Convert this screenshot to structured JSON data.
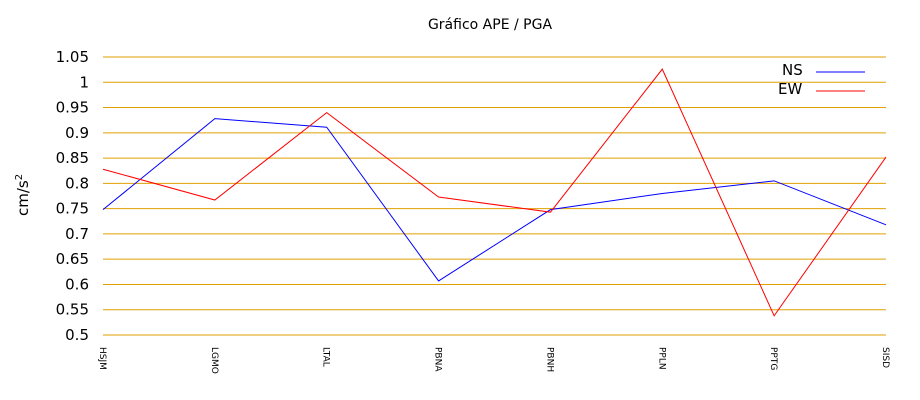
{
  "chart_data": {
    "type": "line",
    "title": "Gráfico  APE / PGA",
    "xlabel": "",
    "ylabel": "cm/s",
    "ylabel_exponent": "2",
    "categories": [
      "HSJM",
      "LGMO",
      "LTAL",
      "PBNA",
      "PBNH",
      "PPLN",
      "PPTG",
      "SISD"
    ],
    "ylim": [
      0.5,
      1.05
    ],
    "yticks": [
      "0.5",
      "0.55",
      "0.6",
      "0.65",
      "0.7",
      "0.75",
      "0.8",
      "0.85",
      "0.9",
      "0.95",
      "1",
      "1.05"
    ],
    "grid": true,
    "legend_position": "top-right",
    "series": [
      {
        "name": "NS",
        "color": "#0000ff",
        "values": [
          0.748,
          0.928,
          0.911,
          0.607,
          0.748,
          0.78,
          0.805,
          0.718
        ]
      },
      {
        "name": "EW",
        "color": "#ff0000",
        "values": [
          0.828,
          0.767,
          0.94,
          0.773,
          0.743,
          1.026,
          0.538,
          0.852
        ]
      }
    ],
    "grid_color": "#e0a000"
  }
}
